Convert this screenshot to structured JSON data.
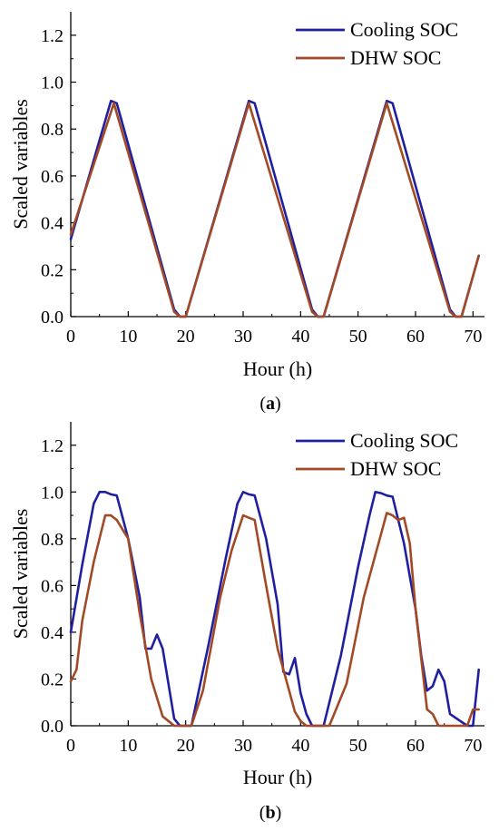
{
  "chart_data": [
    {
      "type": "line",
      "caption_open": "(",
      "caption_letter": "a",
      "caption_close": ")",
      "xlabel": "Hour (h)",
      "ylabel": "Scaled variables",
      "xlim": [
        0,
        72
      ],
      "ylim": [
        0,
        1.3
      ],
      "xticks": [
        "0",
        "10",
        "20",
        "30",
        "40",
        "50",
        "60",
        "70"
      ],
      "yticks": [
        "0.0",
        "0.2",
        "0.4",
        "0.6",
        "0.8",
        "1.0",
        "1.2"
      ],
      "grid": false,
      "legend": "top-right",
      "series": [
        {
          "name": "Cooling SOC",
          "color": "#1f1fa0",
          "x": [
            0,
            7,
            8,
            18,
            19,
            20,
            31,
            32,
            42,
            43,
            44,
            55,
            56,
            66,
            67,
            68,
            71
          ],
          "y": [
            0.33,
            0.92,
            0.91,
            0.03,
            0.0,
            0.0,
            0.92,
            0.91,
            0.03,
            0.0,
            0.0,
            0.92,
            0.91,
            0.03,
            0.0,
            0.0,
            0.26
          ]
        },
        {
          "name": "DHW SOC",
          "color": "#a24a26",
          "x": [
            0,
            7.5,
            18,
            19,
            20,
            31,
            42,
            43,
            44,
            55,
            66,
            67,
            68,
            71
          ],
          "y": [
            0.35,
            0.91,
            0.02,
            0.0,
            0.0,
            0.91,
            0.02,
            0.0,
            0.0,
            0.91,
            0.02,
            0.0,
            0.0,
            0.26
          ]
        }
      ]
    },
    {
      "type": "line",
      "caption_open": "(",
      "caption_letter": "b",
      "caption_close": ")",
      "xlabel": "Hour (h)",
      "ylabel": "Scaled variables",
      "xlim": [
        0,
        72
      ],
      "ylim": [
        0,
        1.3
      ],
      "xticks": [
        "0",
        "10",
        "20",
        "30",
        "40",
        "50",
        "60",
        "70"
      ],
      "yticks": [
        "0.0",
        "0.2",
        "0.4",
        "0.6",
        "0.8",
        "1.0",
        "1.2"
      ],
      "grid": false,
      "legend": "top-right",
      "series": [
        {
          "name": "Cooling SOC",
          "color": "#1f1fa0",
          "x": [
            0,
            2,
            4,
            5,
            6,
            7,
            8,
            10,
            12,
            13,
            14,
            15,
            16,
            18,
            19,
            20,
            21,
            24,
            27,
            29,
            30,
            31,
            32,
            34,
            36,
            37,
            38,
            39,
            40,
            41,
            42,
            43,
            44,
            47,
            50,
            52,
            53,
            54,
            55,
            56,
            58,
            60,
            61,
            62,
            63,
            64,
            65,
            66,
            69,
            70,
            71
          ],
          "y": [
            0.4,
            0.69,
            0.95,
            1.0,
            1.0,
            0.99,
            0.985,
            0.8,
            0.55,
            0.33,
            0.33,
            0.39,
            0.33,
            0.03,
            0.0,
            0.0,
            0.0,
            0.35,
            0.72,
            0.95,
            1.0,
            0.99,
            0.985,
            0.8,
            0.52,
            0.23,
            0.22,
            0.29,
            0.14,
            0.05,
            0.0,
            0.0,
            0.0,
            0.3,
            0.68,
            0.9,
            1.0,
            0.995,
            0.985,
            0.98,
            0.78,
            0.5,
            0.3,
            0.15,
            0.17,
            0.24,
            0.19,
            0.05,
            0.0,
            0.0,
            0.24
          ]
        },
        {
          "name": "DHW SOC",
          "color": "#a24a26",
          "x": [
            0,
            1,
            2,
            4,
            6,
            7,
            8,
            10,
            12,
            14,
            16,
            17,
            18,
            19,
            20,
            21,
            23,
            26,
            28,
            30,
            31,
            32,
            34,
            36,
            38,
            39,
            40,
            41,
            42,
            43,
            44,
            45,
            48,
            51,
            54,
            55,
            56,
            57,
            58,
            59,
            60,
            62,
            63,
            64,
            65,
            66,
            69,
            70,
            71
          ],
          "y": [
            0.19,
            0.24,
            0.45,
            0.7,
            0.9,
            0.9,
            0.88,
            0.8,
            0.48,
            0.2,
            0.04,
            0.02,
            0.0,
            0.0,
            0.0,
            0.0,
            0.15,
            0.55,
            0.75,
            0.9,
            0.89,
            0.88,
            0.6,
            0.33,
            0.15,
            0.06,
            0.02,
            0.0,
            0.0,
            0.0,
            0.0,
            0.0,
            0.18,
            0.55,
            0.82,
            0.91,
            0.9,
            0.88,
            0.89,
            0.78,
            0.5,
            0.07,
            0.05,
            0.0,
            0.0,
            0.0,
            0.0,
            0.07,
            0.07
          ]
        }
      ]
    }
  ]
}
